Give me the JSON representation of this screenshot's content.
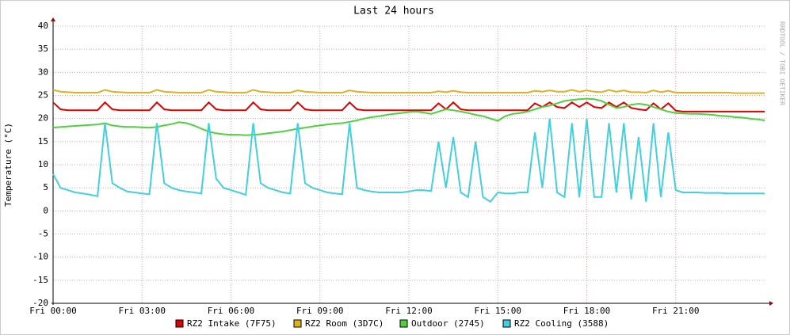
{
  "chart_data": {
    "type": "line",
    "title": "Last 24 hours",
    "y_label": "Temperature (°C)",
    "watermark": "RRDTOOL / TOBI OETIKER",
    "xlim": [
      0,
      24
    ],
    "ylim": [
      -20,
      40
    ],
    "yticks": [
      -20,
      -15,
      -10,
      -5,
      0,
      5,
      10,
      15,
      20,
      25,
      30,
      35,
      40
    ],
    "xticks": [
      {
        "value": 0,
        "label": "Fri 00:00"
      },
      {
        "value": 3,
        "label": "Fri 03:00"
      },
      {
        "value": 6,
        "label": "Fri 06:00"
      },
      {
        "value": 9,
        "label": "Fri 09:00"
      },
      {
        "value": 12,
        "label": "Fri 12:00"
      },
      {
        "value": 15,
        "label": "Fri 15:00"
      },
      {
        "value": 18,
        "label": "Fri 18:00"
      },
      {
        "value": 21,
        "label": "Fri 21:00"
      }
    ],
    "grid": true,
    "x": [
      0,
      0.25,
      0.5,
      0.75,
      1,
      1.25,
      1.5,
      1.75,
      2,
      2.25,
      2.5,
      2.75,
      3,
      3.25,
      3.5,
      3.75,
      4,
      4.25,
      4.5,
      4.75,
      5,
      5.25,
      5.5,
      5.75,
      6,
      6.25,
      6.5,
      6.75,
      7,
      7.25,
      7.5,
      7.75,
      8,
      8.25,
      8.5,
      8.75,
      9,
      9.25,
      9.5,
      9.75,
      10,
      10.25,
      10.5,
      10.75,
      11,
      11.25,
      11.5,
      11.75,
      12,
      12.25,
      12.5,
      12.75,
      13,
      13.25,
      13.5,
      13.75,
      14,
      14.25,
      14.5,
      14.75,
      15,
      15.25,
      15.5,
      15.75,
      16,
      16.25,
      16.5,
      16.75,
      17,
      17.25,
      17.5,
      17.75,
      18,
      18.25,
      18.5,
      18.75,
      19,
      19.25,
      19.5,
      19.75,
      20,
      20.25,
      20.5,
      20.75,
      21,
      21.25,
      21.5,
      21.75,
      22,
      22.25,
      22.5,
      22.75,
      23,
      23.25,
      23.5,
      23.75,
      24
    ],
    "series": [
      {
        "name": "RZ2 Intake (7F75)",
        "color": "#e00000",
        "values": [
          23.5,
          22,
          21.8,
          21.8,
          21.8,
          21.8,
          21.8,
          23.5,
          22,
          21.8,
          21.8,
          21.8,
          21.8,
          21.8,
          23.5,
          22,
          21.8,
          21.8,
          21.8,
          21.8,
          21.8,
          23.5,
          22,
          21.8,
          21.8,
          21.8,
          21.8,
          23.5,
          22,
          21.8,
          21.8,
          21.8,
          21.8,
          23.5,
          22,
          21.8,
          21.8,
          21.8,
          21.8,
          21.8,
          23.5,
          22,
          21.8,
          21.8,
          21.8,
          21.8,
          21.8,
          21.8,
          21.8,
          21.8,
          21.8,
          21.8,
          23.3,
          22,
          23.5,
          22,
          21.8,
          21.8,
          21.8,
          21.8,
          21.8,
          21.8,
          21.8,
          21.8,
          21.8,
          23.3,
          22.5,
          23.5,
          22.5,
          22.3,
          23.5,
          22.5,
          23.5,
          22.5,
          22.3,
          23.5,
          22.5,
          23.5,
          22.3,
          22,
          21.8,
          23.3,
          22,
          23.3,
          21.7,
          21.5,
          21.5,
          21.5,
          21.5,
          21.5,
          21.5,
          21.5,
          21.5,
          21.5,
          21.5,
          21.5,
          21.5
        ]
      },
      {
        "name": "RZ2 Room (3D7C)",
        "color": "#e0b020",
        "values": [
          26.2,
          25.8,
          25.7,
          25.6,
          25.6,
          25.6,
          25.6,
          26.2,
          25.8,
          25.7,
          25.6,
          25.6,
          25.6,
          25.6,
          26.2,
          25.8,
          25.7,
          25.6,
          25.6,
          25.6,
          25.6,
          26.2,
          25.8,
          25.7,
          25.6,
          25.6,
          25.6,
          26.2,
          25.8,
          25.7,
          25.6,
          25.6,
          25.6,
          26.1,
          25.8,
          25.7,
          25.6,
          25.6,
          25.6,
          25.6,
          26.1,
          25.8,
          25.7,
          25.6,
          25.6,
          25.6,
          25.6,
          25.6,
          25.6,
          25.6,
          25.6,
          25.6,
          25.9,
          25.7,
          26,
          25.7,
          25.6,
          25.6,
          25.6,
          25.6,
          25.6,
          25.6,
          25.6,
          25.6,
          25.6,
          26,
          25.8,
          26.1,
          25.8,
          25.8,
          26.2,
          25.8,
          26.1,
          25.8,
          25.7,
          26.2,
          25.8,
          26.1,
          25.7,
          25.7,
          25.6,
          26.1,
          25.7,
          26,
          25.6,
          25.6,
          25.6,
          25.6,
          25.6,
          25.6,
          25.6,
          25.6,
          25.5,
          25.5,
          25.5,
          25.5,
          25.5
        ]
      },
      {
        "name": "Outdoor (2745)",
        "color": "#50d040",
        "values": [
          18,
          18.2,
          18.3,
          18.4,
          18.5,
          18.6,
          18.7,
          19,
          18.5,
          18.3,
          18.2,
          18.2,
          18.1,
          18,
          18.2,
          18.5,
          18.8,
          19.2,
          19,
          18.5,
          17.8,
          17.2,
          16.8,
          16.6,
          16.5,
          16.5,
          16.4,
          16.5,
          16.6,
          16.8,
          17,
          17.2,
          17.5,
          17.8,
          18,
          18.3,
          18.5,
          18.7,
          18.9,
          19,
          19.3,
          19.6,
          20,
          20.3,
          20.5,
          20.8,
          21,
          21.2,
          21.4,
          21.5,
          21.3,
          21,
          21.5,
          22,
          21.8,
          21.5,
          21.2,
          20.8,
          20.5,
          20,
          19.5,
          20.5,
          21,
          21.2,
          21.5,
          22,
          22.5,
          22.8,
          23.3,
          23.8,
          24,
          24.2,
          24.3,
          24.2,
          23.8,
          23,
          22.3,
          22.5,
          23,
          23.2,
          23,
          22.5,
          22,
          21.5,
          21.2,
          21.1,
          21,
          21,
          20.9,
          20.8,
          20.6,
          20.5,
          20.3,
          20.2,
          20,
          19.8,
          19.6
        ]
      },
      {
        "name": "RZ2 Cooling (3588)",
        "color": "#40d0e0",
        "values": [
          8,
          5,
          4.5,
          4,
          3.8,
          3.5,
          3.2,
          19,
          6,
          5,
          4.2,
          4,
          3.8,
          3.6,
          19,
          6,
          5,
          4.5,
          4.2,
          4,
          3.8,
          19,
          7,
          5,
          4.5,
          4,
          3.5,
          19,
          6,
          5,
          4.5,
          4,
          3.8,
          19,
          6,
          5,
          4.5,
          4,
          3.8,
          3.6,
          19,
          5,
          4.5,
          4.2,
          4,
          4,
          4,
          4,
          4.2,
          4.5,
          4.5,
          4.3,
          15,
          5,
          16,
          4,
          3,
          15,
          3,
          2,
          4,
          3.8,
          3.8,
          4,
          4,
          17,
          5,
          20,
          4,
          3,
          19,
          3,
          20,
          3,
          3,
          19,
          4,
          19,
          2.5,
          16,
          2,
          19,
          3,
          17,
          4.5,
          4,
          4,
          4,
          3.9,
          3.9,
          3.9,
          3.8,
          3.8,
          3.8,
          3.8,
          3.8,
          3.8
        ]
      }
    ]
  }
}
